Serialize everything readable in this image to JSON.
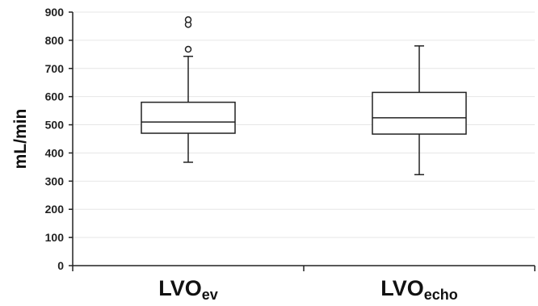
{
  "chart_data": {
    "type": "boxplot",
    "ylabel": "mL/min",
    "ylim": [
      0,
      900
    ],
    "yticks": [
      0,
      100,
      200,
      300,
      400,
      500,
      600,
      700,
      800,
      900
    ],
    "grid": true,
    "categories": [
      {
        "main": "LVO",
        "sub": "ev"
      },
      {
        "main": "LVO",
        "sub": "echo"
      }
    ],
    "boxes": [
      {
        "min": 367,
        "q1": 470,
        "median": 510,
        "q3": 580,
        "max": 743,
        "outliers": [
          768,
          856,
          873
        ]
      },
      {
        "min": 323,
        "q1": 467,
        "median": 525,
        "q3": 615,
        "max": 780,
        "outliers": []
      }
    ]
  }
}
